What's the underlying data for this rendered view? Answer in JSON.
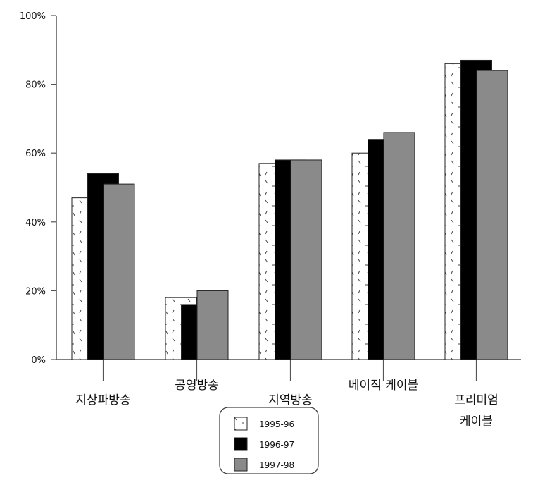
{
  "chart_data": {
    "type": "bar",
    "title": "",
    "xlabel": "",
    "ylabel": "",
    "ylim": [
      0,
      100
    ],
    "yticks": [
      "0%",
      "20%",
      "40%",
      "60%",
      "80%",
      "100%"
    ],
    "categories": [
      [
        "지상파방송"
      ],
      [
        "공영방송"
      ],
      [
        "지역방송"
      ],
      [
        "베이직 케이블"
      ],
      [
        "프리미엄",
        "케이블"
      ]
    ],
    "series": [
      {
        "name": "1995-96",
        "color": "#ffffff",
        "pattern": "dashes",
        "values": [
          47,
          18,
          57,
          60,
          86
        ]
      },
      {
        "name": "1996-97",
        "color": "#000000",
        "values": [
          54,
          16,
          58,
          64,
          87
        ]
      },
      {
        "name": "1997-98",
        "color": "#8a8a8a",
        "values": [
          51,
          20,
          58,
          66,
          84
        ]
      }
    ],
    "legend_position": "bottom-center",
    "grid": false
  }
}
